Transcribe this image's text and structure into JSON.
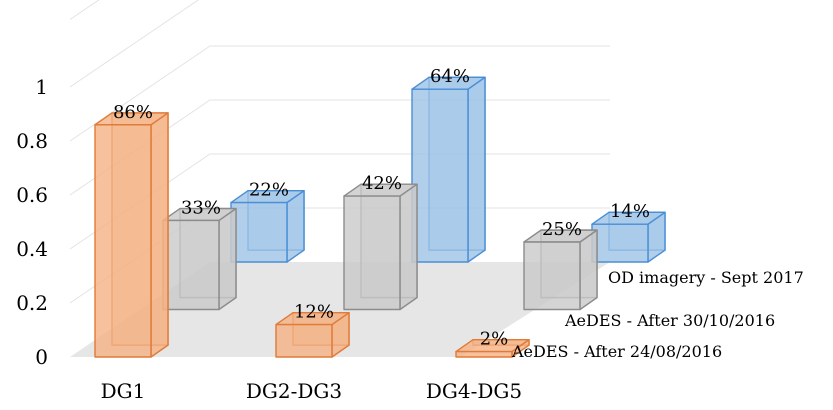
{
  "chart_data": {
    "type": "bar",
    "categories": [
      "DG1",
      "DG2-DG3",
      "DG4-DG5"
    ],
    "series": [
      {
        "name": "AeDES - After 24/08/2016",
        "values": [
          0.86,
          0.12,
          0.02
        ],
        "labels": [
          "86%",
          "12%",
          "2%"
        ],
        "color": "#f4b183",
        "edge": "#e07b39"
      },
      {
        "name": "AeDES - After 30/10/2016",
        "values": [
          0.33,
          0.42,
          0.25
        ],
        "labels": [
          "33%",
          "42%",
          "25%"
        ],
        "color": "#c9c9c9",
        "edge": "#8c8c8c"
      },
      {
        "name": "OD imagery - Sept 2017",
        "values": [
          0.22,
          0.64,
          0.14
        ],
        "labels": [
          "22%",
          "64%",
          "14%"
        ],
        "color": "#9dc3e6",
        "edge": "#4a8fd6"
      }
    ],
    "yticks": [
      "0",
      "0.2",
      "0.4",
      "0.6",
      "0.8",
      "1"
    ],
    "ylim": [
      0,
      1
    ],
    "grid": true
  }
}
